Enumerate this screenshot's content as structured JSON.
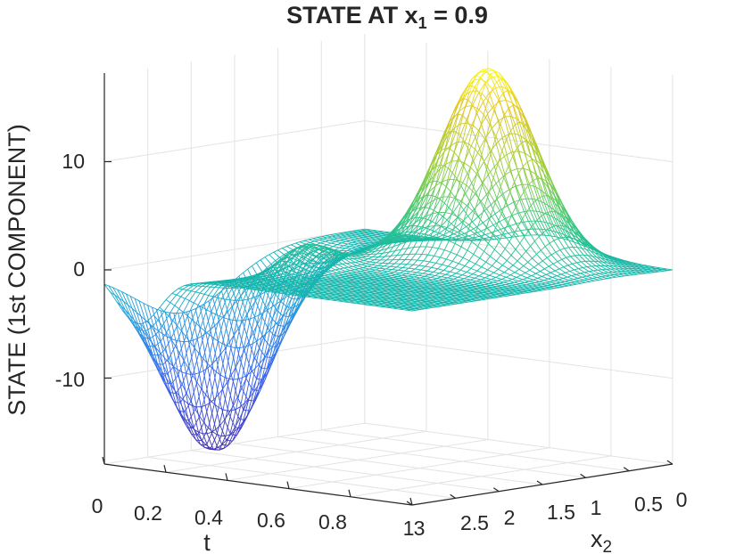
{
  "chart_data": {
    "type": "surface",
    "title": "STATE AT x",
    "title_subscript": "1",
    "title_suffix": " = 0.9",
    "xlabel": "t",
    "ylabel": "x",
    "ylabel_subscript": "2",
    "zlabel": "STATE (1st COMPONENT)",
    "xlim": [
      0,
      1
    ],
    "ylim": [
      0,
      3
    ],
    "zlim": [
      -18,
      18
    ],
    "x_ticks": [
      "0",
      "0.2",
      "0.4",
      "0.6",
      "0.8",
      "1"
    ],
    "y_ticks": [
      "0",
      "0.5",
      "1",
      "1.5",
      "2",
      "2.5",
      "3"
    ],
    "z_ticks": [
      "-10",
      "0",
      "10"
    ],
    "colormap": "parula",
    "grid": true,
    "surface": {
      "description_points": [
        {
          "t": 0.1,
          "x2": 0.9,
          "value": -17.5
        },
        {
          "t": 0.3,
          "x2": 1.2,
          "value": 2
        },
        {
          "t": 0.6,
          "x2": 2.3,
          "value": 18
        },
        {
          "t": 1.0,
          "x2": 3.0,
          "value": 0
        }
      ]
    }
  }
}
